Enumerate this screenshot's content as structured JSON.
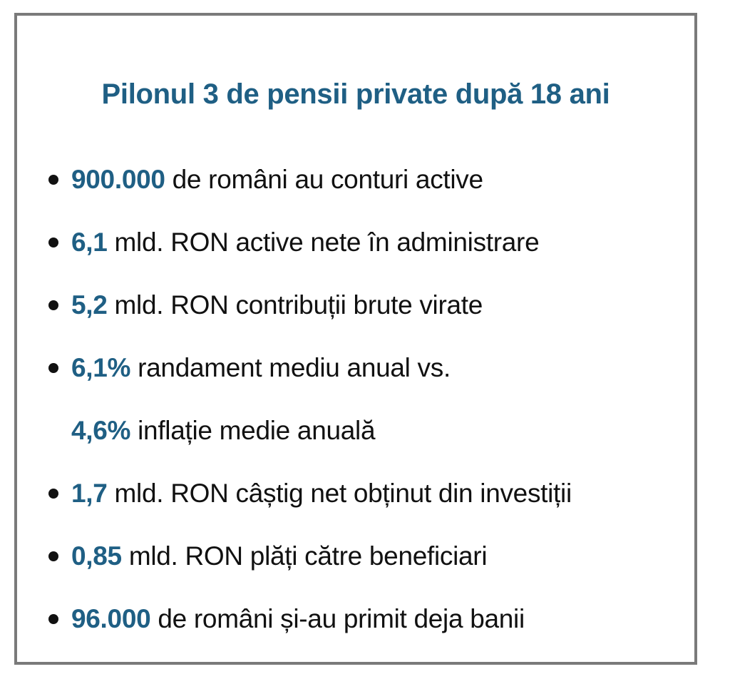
{
  "title": "Pilonul 3 de pensii private după 18 ani",
  "colors": {
    "accent": "#1f5f84",
    "text": "#111111",
    "border": "#7a7a7a",
    "background": "#ffffff"
  },
  "facts": [
    {
      "value": "900.000",
      "text": "de români au conturi active",
      "bullet": true
    },
    {
      "value": "6,1",
      "text": "mld. RON active nete în administrare",
      "bullet": true
    },
    {
      "value": "5,2",
      "text": "mld. RON contribuții brute virate",
      "bullet": true
    },
    {
      "value": "6,1%",
      "text": "randament mediu anual vs.",
      "bullet": true
    },
    {
      "value": "4,6%",
      "text": "inflație medie anuală",
      "bullet": false
    },
    {
      "value": "1,7",
      "text": "mld. RON câștig net obținut din investiții",
      "bullet": true
    },
    {
      "value": "0,85",
      "text": "mld. RON plăți către beneficiari",
      "bullet": true
    },
    {
      "value": "96.000",
      "text": "de români și-au primit deja banii",
      "bullet": true
    }
  ]
}
